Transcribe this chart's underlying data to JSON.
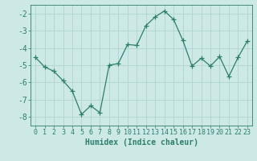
{
  "x": [
    0,
    1,
    2,
    3,
    4,
    5,
    6,
    7,
    8,
    9,
    10,
    11,
    12,
    13,
    14,
    15,
    16,
    17,
    18,
    19,
    20,
    21,
    22,
    23
  ],
  "y": [
    -4.55,
    -5.1,
    -5.35,
    -5.9,
    -6.5,
    -7.85,
    -7.35,
    -7.75,
    -5.0,
    -4.9,
    -3.8,
    -3.85,
    -2.7,
    -2.2,
    -1.85,
    -2.35,
    -3.55,
    -5.05,
    -4.6,
    -5.05,
    -4.5,
    -5.65,
    -4.55,
    -3.6
  ],
  "line_color": "#2e7d6e",
  "bg_color": "#cce9e5",
  "grid_color": "#b0d4d0",
  "xlabel": "Humidex (Indice chaleur)",
  "ylim": [
    -8.5,
    -1.5
  ],
  "xlim": [
    -0.5,
    23.5
  ],
  "yticks": [
    -8,
    -7,
    -6,
    -5,
    -4,
    -3,
    -2
  ],
  "xticks": [
    0,
    1,
    2,
    3,
    4,
    5,
    6,
    7,
    8,
    9,
    10,
    11,
    12,
    13,
    14,
    15,
    16,
    17,
    18,
    19,
    20,
    21,
    22,
    23
  ],
  "tick_color": "#2e7d6e",
  "label_fontsize": 7,
  "tick_fontsize": 6
}
